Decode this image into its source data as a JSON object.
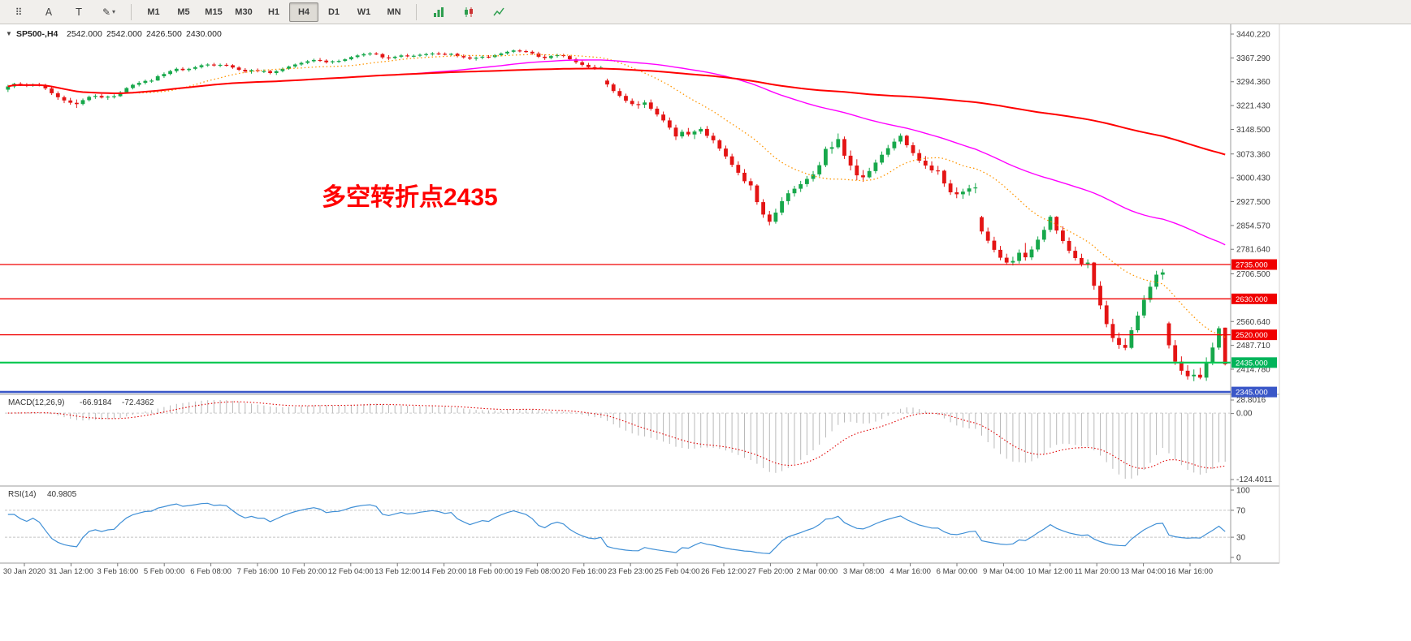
{
  "toolbar": {
    "tools": [
      {
        "name": "objects-grid",
        "glyph": "⠿"
      },
      {
        "name": "label-a",
        "glyph": "A"
      },
      {
        "name": "text-box",
        "glyph": "T"
      },
      {
        "name": "draw-pencil",
        "glyph": "✎",
        "caret": "▾"
      }
    ],
    "timeframes": [
      "M1",
      "M5",
      "M15",
      "M30",
      "H1",
      "H4",
      "D1",
      "W1",
      "MN"
    ],
    "active_timeframe": "H4"
  },
  "chart_header": {
    "dropdown_glyph": "▼",
    "symbol": "SP500-,H4",
    "open": "2542.000",
    "high": "2542.000",
    "low": "2426.500",
    "close": "2430.000"
  },
  "annotation": {
    "text": "多空转折点2435",
    "color": "#ff0000"
  },
  "levels": [
    {
      "label": "2735.000",
      "price": 2735.0,
      "line_color": "#f00000",
      "box_color": "#f00000",
      "line_width": 1.3
    },
    {
      "label": "2630.000",
      "price": 2630.0,
      "line_color": "#f00000",
      "box_color": "#f00000",
      "line_width": 1.3
    },
    {
      "label": "2520.000",
      "price": 2520.0,
      "line_color": "#f00000",
      "box_color": "#f00000",
      "line_width": 1.3
    },
    {
      "label": "2435.000",
      "price": 2435.0,
      "line_color": "#00c853",
      "box_color": "#00b45a",
      "line_width": 2.2
    },
    {
      "label": "2345.000",
      "price": 2345.0,
      "line_color": "#3a57c8",
      "box_color": "#3a57c8",
      "line_width": 2.6
    }
  ],
  "price_axis": {
    "labels": [
      [
        "3440.220",
        3440.22
      ],
      [
        "3367.290",
        3367.29
      ],
      [
        "3294.360",
        3294.36
      ],
      [
        "3221.430",
        3221.43
      ],
      [
        "3148.500",
        3148.5
      ],
      [
        "3073.360",
        3073.36
      ],
      [
        "3000.430",
        3000.43
      ],
      [
        "2927.500",
        2927.5
      ],
      [
        "2854.570",
        2854.57
      ],
      [
        "2781.640",
        2781.64
      ],
      [
        "2706.500",
        2706.5
      ],
      [
        "2560.640",
        2560.64
      ],
      [
        "2487.710",
        2487.71
      ],
      [
        "2414.780",
        2414.78
      ]
    ]
  },
  "time_axis": [
    "30 Jan 2020",
    "31 Jan 12:00",
    "3 Feb 16:00",
    "5 Feb 00:00",
    "6 Feb 08:00",
    "7 Feb 16:00",
    "10 Feb 20:00",
    "12 Feb 04:00",
    "13 Feb 12:00",
    "14 Feb 20:00",
    "18 Feb 00:00",
    "19 Feb 08:00",
    "20 Feb 16:00",
    "23 Feb 23:00",
    "25 Feb 04:00",
    "26 Feb 12:00",
    "27 Feb 20:00",
    "2 Mar 00:00",
    "3 Mar 08:00",
    "4 Mar 16:00",
    "6 Mar 00:00",
    "9 Mar 04:00",
    "10 Mar 12:00",
    "11 Mar 20:00",
    "13 Mar 04:00",
    "16 Mar 16:00"
  ],
  "macd_panel": {
    "title": "MACD(12,26,9)",
    "value1": "-66.9184",
    "value2": "-72.4362",
    "axis_labels": [
      "28.8016",
      "0.00",
      "-124.4011"
    ]
  },
  "rsi_panel": {
    "title": "RSI(14)",
    "value": "40.9805",
    "axis_labels": [
      "100",
      "70",
      "30",
      "0"
    ],
    "level_lines": [
      70,
      30
    ]
  },
  "chart_data": {
    "type": "candlestick",
    "symbol": "SP500-",
    "period": "H4",
    "ylim": [
      2343,
      3465
    ],
    "overlays": [
      {
        "name": "ma-fast",
        "window": 20,
        "color": "#ff9500",
        "style": "dotted",
        "width": 1.3
      },
      {
        "name": "ma-mid",
        "window": 65,
        "color": "#ff00ff",
        "style": "solid",
        "width": 1.4
      },
      {
        "name": "ma-slow",
        "window": 160,
        "color": "#ff0000",
        "style": "solid",
        "width": 2
      }
    ],
    "indicators": [
      {
        "type": "MACD",
        "params": [
          12,
          26,
          9
        ],
        "histogram_color": "#b9b9b9",
        "signal_color": "#e00000"
      },
      {
        "type": "RSI",
        "params": [
          14
        ],
        "color": "#3f8fd6"
      }
    ],
    "ohlc": [
      [
        3270,
        3285,
        3263,
        3280
      ],
      [
        3280,
        3291,
        3275,
        3288
      ],
      [
        3288,
        3293,
        3281,
        3285
      ],
      [
        3285,
        3290,
        3278,
        3283
      ],
      [
        3283,
        3289,
        3279,
        3286
      ],
      [
        3286,
        3291,
        3280,
        3283
      ],
      [
        3283,
        3288,
        3269,
        3274
      ],
      [
        3274,
        3279,
        3254,
        3259
      ],
      [
        3259,
        3265,
        3239,
        3247
      ],
      [
        3247,
        3252,
        3229,
        3237
      ],
      [
        3237,
        3245,
        3224,
        3230
      ],
      [
        3230,
        3240,
        3214,
        3226
      ],
      [
        3226,
        3243,
        3222,
        3238
      ],
      [
        3238,
        3252,
        3234,
        3248
      ],
      [
        3248,
        3256,
        3242,
        3251
      ],
      [
        3251,
        3257,
        3243,
        3246
      ],
      [
        3246,
        3252,
        3239,
        3249
      ],
      [
        3249,
        3256,
        3243,
        3250
      ],
      [
        3250,
        3266,
        3248,
        3262
      ],
      [
        3262,
        3278,
        3259,
        3275
      ],
      [
        3275,
        3288,
        3271,
        3285
      ],
      [
        3285,
        3296,
        3280,
        3291
      ],
      [
        3291,
        3301,
        3286,
        3297
      ],
      [
        3297,
        3303,
        3291,
        3298
      ],
      [
        3298,
        3316,
        3297,
        3311
      ],
      [
        3311,
        3323,
        3306,
        3318
      ],
      [
        3318,
        3331,
        3314,
        3327
      ],
      [
        3327,
        3338,
        3322,
        3334
      ],
      [
        3334,
        3339,
        3327,
        3330
      ],
      [
        3330,
        3337,
        3325,
        3334
      ],
      [
        3334,
        3343,
        3330,
        3339
      ],
      [
        3339,
        3349,
        3335,
        3345
      ],
      [
        3345,
        3351,
        3340,
        3347
      ],
      [
        3347,
        3352,
        3341,
        3344
      ],
      [
        3344,
        3350,
        3339,
        3346
      ],
      [
        3346,
        3351,
        3341,
        3345
      ],
      [
        3345,
        3348,
        3334,
        3338
      ],
      [
        3338,
        3342,
        3327,
        3331
      ],
      [
        3331,
        3336,
        3321,
        3326
      ],
      [
        3326,
        3333,
        3319,
        3330
      ],
      [
        3330,
        3335,
        3323,
        3327
      ],
      [
        3327,
        3332,
        3321,
        3327
      ],
      [
        3327,
        3331,
        3317,
        3321
      ],
      [
        3321,
        3330,
        3315,
        3327
      ],
      [
        3327,
        3338,
        3323,
        3334
      ],
      [
        3334,
        3344,
        3331,
        3341
      ],
      [
        3341,
        3350,
        3337,
        3347
      ],
      [
        3347,
        3356,
        3343,
        3352
      ],
      [
        3352,
        3361,
        3348,
        3357
      ],
      [
        3357,
        3365,
        3353,
        3361
      ],
      [
        3361,
        3367,
        3355,
        3359
      ],
      [
        3359,
        3363,
        3350,
        3354
      ],
      [
        3354,
        3360,
        3349,
        3357
      ],
      [
        3357,
        3362,
        3352,
        3358
      ],
      [
        3358,
        3366,
        3355,
        3363
      ],
      [
        3363,
        3373,
        3360,
        3370
      ],
      [
        3370,
        3379,
        3366,
        3375
      ],
      [
        3375,
        3383,
        3371,
        3379
      ],
      [
        3379,
        3385,
        3374,
        3381
      ],
      [
        3381,
        3385,
        3376,
        3379
      ],
      [
        3379,
        3382,
        3364,
        3369
      ],
      [
        3369,
        3376,
        3361,
        3367
      ],
      [
        3367,
        3374,
        3363,
        3371
      ],
      [
        3371,
        3379,
        3367,
        3375
      ],
      [
        3375,
        3380,
        3369,
        3373
      ],
      [
        3373,
        3378,
        3369,
        3374
      ],
      [
        3374,
        3381,
        3370,
        3377
      ],
      [
        3377,
        3383,
        3372,
        3379
      ],
      [
        3379,
        3385,
        3374,
        3381
      ],
      [
        3381,
        3386,
        3376,
        3380
      ],
      [
        3380,
        3384,
        3375,
        3378
      ],
      [
        3378,
        3382,
        3374,
        3380
      ],
      [
        3380,
        3383,
        3369,
        3373
      ],
      [
        3373,
        3378,
        3365,
        3369
      ],
      [
        3369,
        3375,
        3361,
        3365
      ],
      [
        3365,
        3372,
        3359,
        3368
      ],
      [
        3368,
        3375,
        3363,
        3371
      ],
      [
        3371,
        3376,
        3366,
        3370
      ],
      [
        3370,
        3379,
        3367,
        3376
      ],
      [
        3376,
        3384,
        3372,
        3381
      ],
      [
        3381,
        3389,
        3377,
        3386
      ],
      [
        3386,
        3393,
        3382,
        3390
      ],
      [
        3390,
        3394,
        3384,
        3388
      ],
      [
        3388,
        3392,
        3383,
        3386
      ],
      [
        3386,
        3390,
        3377,
        3381
      ],
      [
        3381,
        3386,
        3367,
        3371
      ],
      [
        3371,
        3378,
        3361,
        3367
      ],
      [
        3367,
        3376,
        3363,
        3373
      ],
      [
        3373,
        3380,
        3368,
        3376
      ],
      [
        3376,
        3380,
        3369,
        3373
      ],
      [
        3373,
        3376,
        3359,
        3363
      ],
      [
        3363,
        3368,
        3349,
        3354
      ],
      [
        3354,
        3360,
        3341,
        3346
      ],
      [
        3346,
        3352,
        3335,
        3339
      ],
      [
        3339,
        3346,
        3331,
        3336
      ],
      [
        3336,
        3343,
        3332,
        3338
      ],
      [
        3298,
        3304,
        3278,
        3286
      ],
      [
        3286,
        3291,
        3260,
        3266
      ],
      [
        3266,
        3274,
        3246,
        3251
      ],
      [
        3251,
        3258,
        3230,
        3236
      ],
      [
        3236,
        3243,
        3220,
        3226
      ],
      [
        3226,
        3235,
        3212,
        3224
      ],
      [
        3224,
        3238,
        3214,
        3231
      ],
      [
        3231,
        3240,
        3206,
        3212
      ],
      [
        3212,
        3219,
        3188,
        3194
      ],
      [
        3194,
        3203,
        3170,
        3176
      ],
      [
        3176,
        3185,
        3148,
        3154
      ],
      [
        3154,
        3163,
        3116,
        3127
      ],
      [
        3127,
        3148,
        3121,
        3141
      ],
      [
        3141,
        3153,
        3127,
        3133
      ],
      [
        3133,
        3147,
        3119,
        3142
      ],
      [
        3142,
        3156,
        3135,
        3150
      ],
      [
        3150,
        3159,
        3122,
        3129
      ],
      [
        3129,
        3138,
        3106,
        3115
      ],
      [
        3115,
        3119,
        3083,
        3090
      ],
      [
        3090,
        3099,
        3058,
        3066
      ],
      [
        3066,
        3074,
        3033,
        3040
      ],
      [
        3040,
        3051,
        3008,
        3016
      ],
      [
        3016,
        3027,
        2983,
        2990
      ],
      [
        2990,
        2999,
        2962,
        2977
      ],
      [
        2977,
        2981,
        2918,
        2926
      ],
      [
        2926,
        2935,
        2878,
        2888
      ],
      [
        2888,
        2899,
        2855,
        2866
      ],
      [
        2866,
        2906,
        2860,
        2894
      ],
      [
        2894,
        2941,
        2886,
        2929
      ],
      [
        2929,
        2963,
        2918,
        2953
      ],
      [
        2953,
        2976,
        2943,
        2967
      ],
      [
        2967,
        2991,
        2957,
        2981
      ],
      [
        2981,
        3006,
        2973,
        2997
      ],
      [
        2997,
        3021,
        2989,
        3011
      ],
      [
        3011,
        3049,
        3004,
        3039
      ],
      [
        3039,
        3096,
        3033,
        3089
      ],
      [
        3089,
        3111,
        3074,
        3094
      ],
      [
        3094,
        3136,
        3089,
        3119
      ],
      [
        3119,
        3127,
        3058,
        3068
      ],
      [
        3068,
        3084,
        3023,
        3038
      ],
      [
        3038,
        3057,
        2993,
        3008
      ],
      [
        3008,
        3024,
        2988,
        3002
      ],
      [
        3002,
        3031,
        2999,
        3021
      ],
      [
        3021,
        3056,
        3014,
        3047
      ],
      [
        3047,
        3081,
        3041,
        3071
      ],
      [
        3071,
        3101,
        3064,
        3091
      ],
      [
        3091,
        3121,
        3084,
        3111
      ],
      [
        3111,
        3136,
        3104,
        3129
      ],
      [
        3129,
        3132,
        3093,
        3100
      ],
      [
        3100,
        3109,
        3068,
        3076
      ],
      [
        3076,
        3087,
        3046,
        3053
      ],
      [
        3053,
        3067,
        3028,
        3038
      ],
      [
        3038,
        3051,
        3016,
        3023
      ],
      [
        3023,
        3037,
        3010,
        3022
      ],
      [
        3022,
        3025,
        2973,
        2983
      ],
      [
        2983,
        2994,
        2948,
        2956
      ],
      [
        2956,
        2971,
        2938,
        2950
      ],
      [
        2950,
        2967,
        2936,
        2958
      ],
      [
        2958,
        2979,
        2946,
        2968
      ],
      [
        2968,
        2984,
        2953,
        2971
      ],
      [
        2880,
        2884,
        2828,
        2836
      ],
      [
        2836,
        2848,
        2800,
        2808
      ],
      [
        2808,
        2820,
        2772,
        2780
      ],
      [
        2780,
        2792,
        2748,
        2756
      ],
      [
        2756,
        2768,
        2734,
        2741
      ],
      [
        2741,
        2759,
        2732,
        2746
      ],
      [
        2746,
        2781,
        2738,
        2771
      ],
      [
        2771,
        2801,
        2747,
        2757
      ],
      [
        2757,
        2791,
        2749,
        2781
      ],
      [
        2781,
        2821,
        2774,
        2811
      ],
      [
        2811,
        2851,
        2804,
        2841
      ],
      [
        2841,
        2886,
        2834,
        2881
      ],
      [
        2881,
        2883,
        2829,
        2839
      ],
      [
        2839,
        2852,
        2799,
        2807
      ],
      [
        2807,
        2818,
        2769,
        2777
      ],
      [
        2777,
        2790,
        2747,
        2755
      ],
      [
        2755,
        2768,
        2729,
        2737
      ],
      [
        2737,
        2751,
        2724,
        2741
      ],
      [
        2741,
        2743,
        2658,
        2670
      ],
      [
        2670,
        2684,
        2598,
        2610
      ],
      [
        2610,
        2624,
        2543,
        2553
      ],
      [
        2553,
        2569,
        2498,
        2510
      ],
      [
        2510,
        2527,
        2477,
        2489
      ],
      [
        2489,
        2509,
        2473,
        2480
      ],
      [
        2480,
        2544,
        2476,
        2534
      ],
      [
        2534,
        2591,
        2527,
        2579
      ],
      [
        2579,
        2641,
        2571,
        2627
      ],
      [
        2627,
        2681,
        2619,
        2667
      ],
      [
        2667,
        2716,
        2659,
        2704
      ],
      [
        2704,
        2721,
        2689,
        2711
      ],
      [
        2555,
        2560,
        2478,
        2488
      ],
      [
        2488,
        2504,
        2428,
        2438
      ],
      [
        2438,
        2454,
        2398,
        2410
      ],
      [
        2410,
        2427,
        2383,
        2393
      ],
      [
        2393,
        2414,
        2378,
        2398
      ],
      [
        2398,
        2419,
        2384,
        2389
      ],
      [
        2389,
        2451,
        2379,
        2434
      ],
      [
        2434,
        2496,
        2427,
        2481
      ],
      [
        2481,
        2546,
        2474,
        2540
      ],
      [
        2542,
        2542,
        2426.5,
        2430
      ]
    ]
  }
}
